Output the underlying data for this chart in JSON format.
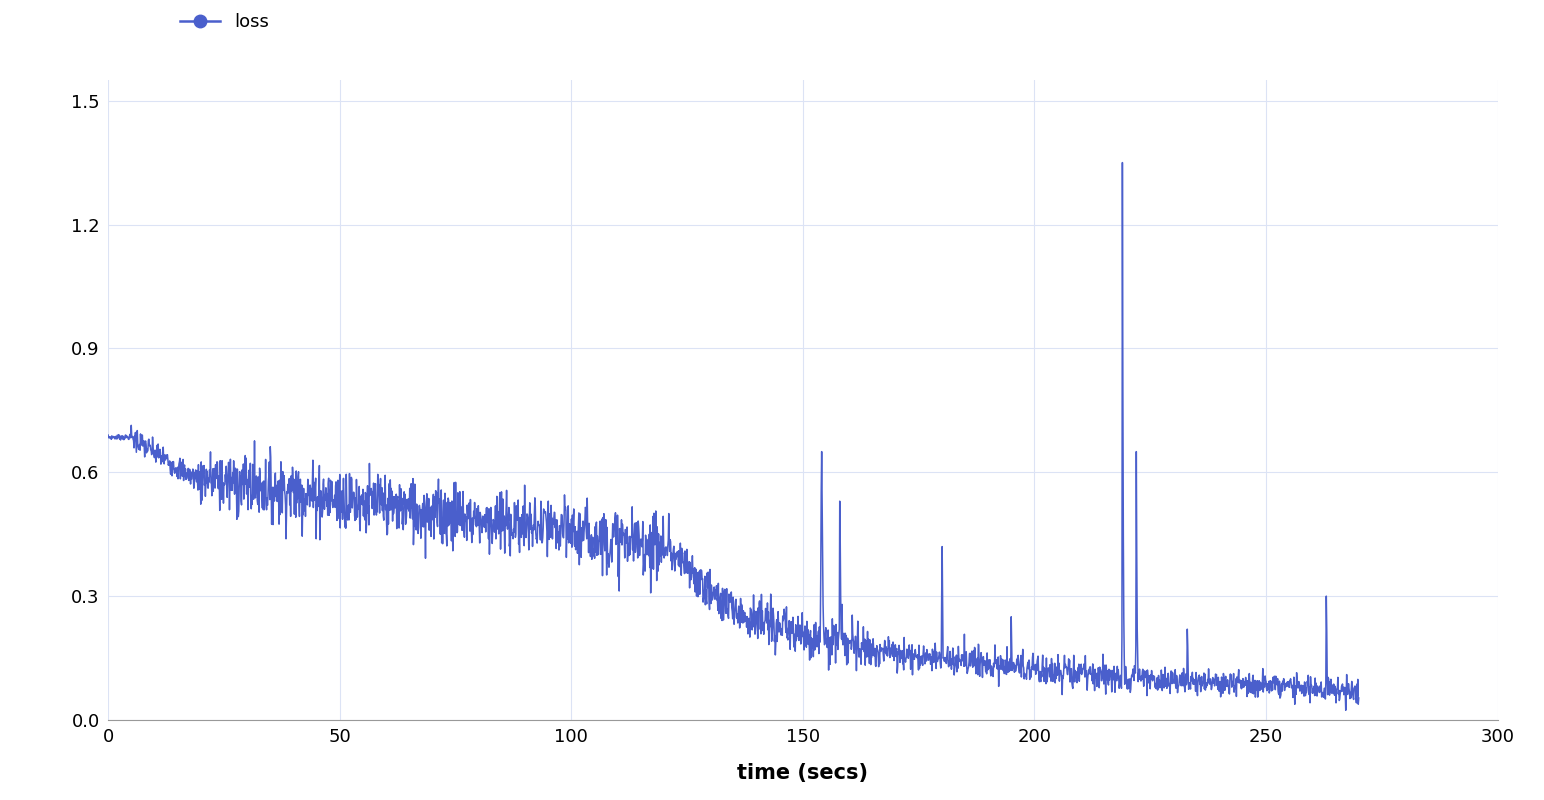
{
  "line_color": "#4a5fcc",
  "line_width": 1.1,
  "marker_color": "#4a5fcc",
  "legend_label": "loss",
  "xlabel": "time (secs)",
  "xlabel_fontsize": 15,
  "xlabel_fontweight": "bold",
  "ylim": [
    0,
    1.55
  ],
  "xlim": [
    0,
    300
  ],
  "yticks": [
    0,
    0.3,
    0.6,
    0.9,
    1.2,
    1.5
  ],
  "xticks": [
    0,
    50,
    100,
    150,
    200,
    250,
    300
  ],
  "grid_color": "#dce3f5",
  "grid_alpha": 1.0,
  "background_color": "#ffffff",
  "legend_fontsize": 13,
  "tick_fontsize": 13,
  "figsize": [
    15.44,
    8.0
  ],
  "dpi": 100
}
